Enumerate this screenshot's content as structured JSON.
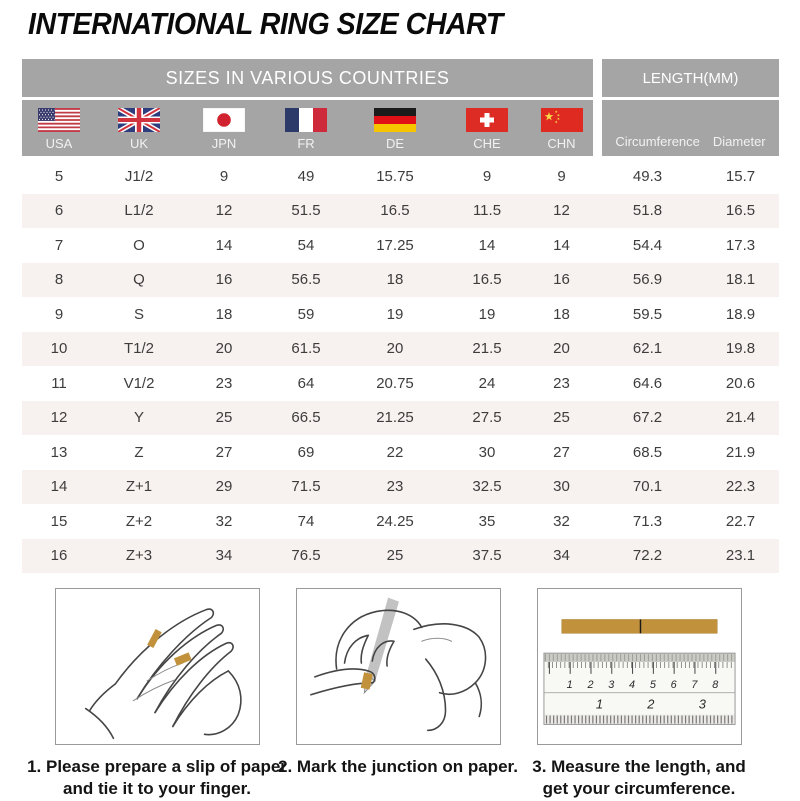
{
  "title": "INTERNATIONAL RING SIZE CHART",
  "chart_data": {
    "type": "table",
    "title": "INTERNATIONAL RING SIZE CHART",
    "group_headers": {
      "countries": "SIZES IN VARIOUS COUNTRIES",
      "length": "LENGTH(MM)"
    },
    "columns": [
      "USA",
      "UK",
      "JPN",
      "FR",
      "DE",
      "CHE",
      "CHN",
      "Circumference",
      "Diameter"
    ],
    "rows": [
      [
        "5",
        "J1/2",
        "9",
        "49",
        "15.75",
        "9",
        "9",
        "49.3",
        "15.7"
      ],
      [
        "6",
        "L1/2",
        "12",
        "51.5",
        "16.5",
        "11.5",
        "12",
        "51.8",
        "16.5"
      ],
      [
        "7",
        "O",
        "14",
        "54",
        "17.25",
        "14",
        "14",
        "54.4",
        "17.3"
      ],
      [
        "8",
        "Q",
        "16",
        "56.5",
        "18",
        "16.5",
        "16",
        "56.9",
        "18.1"
      ],
      [
        "9",
        "S",
        "18",
        "59",
        "19",
        "19",
        "18",
        "59.5",
        "18.9"
      ],
      [
        "10",
        "T1/2",
        "20",
        "61.5",
        "20",
        "21.5",
        "20",
        "62.1",
        "19.8"
      ],
      [
        "11",
        "V1/2",
        "23",
        "64",
        "20.75",
        "24",
        "23",
        "64.6",
        "20.6"
      ],
      [
        "12",
        "Y",
        "25",
        "66.5",
        "21.25",
        "27.5",
        "25",
        "67.2",
        "21.4"
      ],
      [
        "13",
        "Z",
        "27",
        "69",
        "22",
        "30",
        "27",
        "68.5",
        "21.9"
      ],
      [
        "14",
        "Z+1",
        "29",
        "71.5",
        "23",
        "32.5",
        "30",
        "70.1",
        "22.3"
      ],
      [
        "15",
        "Z+2",
        "32",
        "74",
        "24.25",
        "35",
        "32",
        "71.3",
        "22.7"
      ],
      [
        "16",
        "Z+3",
        "34",
        "76.5",
        "25",
        "37.5",
        "34",
        "72.2",
        "23.1"
      ]
    ]
  },
  "flags": [
    {
      "code": "USA",
      "icon": "usa-flag-icon"
    },
    {
      "code": "UK",
      "icon": "uk-flag-icon"
    },
    {
      "code": "JPN",
      "icon": "japan-flag-icon"
    },
    {
      "code": "FR",
      "icon": "france-flag-icon"
    },
    {
      "code": "DE",
      "icon": "germany-flag-icon"
    },
    {
      "code": "CHE",
      "icon": "switzerland-flag-icon"
    },
    {
      "code": "CHN",
      "icon": "china-flag-icon"
    }
  ],
  "instructions": [
    {
      "lines": [
        "1. Please prepare a slip of paper",
        "and tie it to your finger."
      ]
    },
    {
      "lines": [
        "2. Mark the junction on paper."
      ]
    },
    {
      "lines": [
        "3. Measure the length, and",
        "get your circumference."
      ]
    }
  ],
  "ruler": {
    "cm": [
      "1",
      "2",
      "3",
      "4",
      "5",
      "6",
      "7",
      "8"
    ],
    "inch": [
      "1",
      "2",
      "3"
    ]
  },
  "colors": {
    "header_gray": "#a5a5a5",
    "row_alt": "#f7f1ef",
    "text_dark": "#3d3d3d",
    "paper_tan": "#c2913c",
    "box_border": "#9a9a9a"
  }
}
